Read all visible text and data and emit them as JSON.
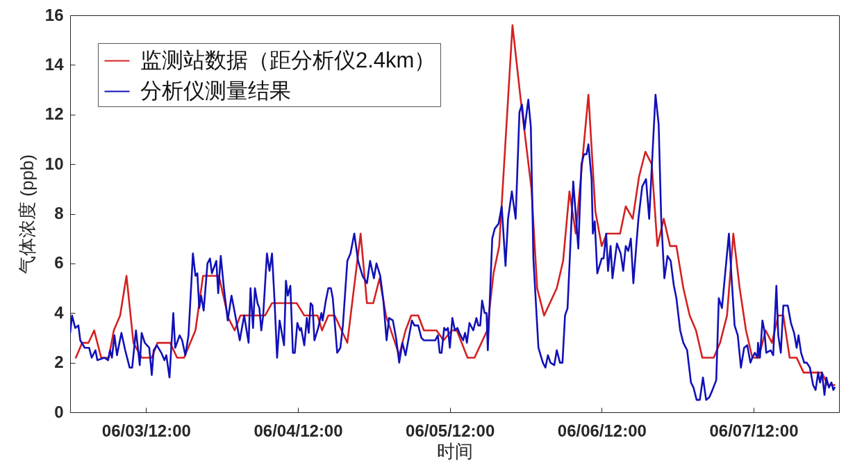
{
  "chart_data": {
    "type": "line",
    "xlabel": "时间",
    "ylabel": "气体浓度 (ppb)",
    "xlim": [
      "--06-03T00:00",
      "--06-08T01:30"
    ],
    "xticks": [
      {
        "value": "--06-03T12:00",
        "label": "06/03/12:00"
      },
      {
        "value": "--06-04T12:00",
        "label": "06/04/12:00"
      },
      {
        "value": "--06-05T12:00",
        "label": "06/05/12:00"
      },
      {
        "value": "--06-06T12:00",
        "label": "06/06/12:00"
      },
      {
        "value": "--06-07T12:00",
        "label": "06/07/12:00"
      }
    ],
    "ylim": [
      0,
      16
    ],
    "yticks": [
      0,
      2,
      4,
      6,
      8,
      10,
      12,
      14,
      16
    ],
    "legend": "top left",
    "series": [
      {
        "name": "监测站数据（距分析仪2.4km）",
        "color": "#d42020",
        "x": [
          "--06-03T00:54",
          "--06-03T01:54",
          "--06-03T02:54",
          "--06-03T03:48",
          "--06-03T04:54",
          "--06-03T06:06",
          "--06-03T06:54",
          "--06-03T07:54",
          "--06-03T08:54",
          "--06-03T10:00",
          "--06-03T11:18",
          "--06-03T12:54",
          "--06-03T13:48",
          "--06-03T15:48",
          "--06-03T16:54",
          "--06-03T18:00",
          "--06-03T19:48",
          "--06-03T21:00",
          "--06-03T23:30",
          "--06-04T01:00",
          "--06-04T02:00",
          "--06-04T02:54",
          "--06-04T06:48",
          "--06-04T07:54",
          "--06-04T11:48",
          "--06-04T13:00",
          "--06-04T15:06",
          "--06-04T15:48",
          "--06-04T16:48",
          "--06-04T17:48",
          "--06-04T19:48",
          "--06-04T21:54",
          "--06-04T22:54",
          "--06-04T23:54",
          "--06-05T00:54",
          "--06-05T01:54",
          "--06-05T04:00",
          "--06-05T05:00",
          "--06-05T05:54",
          "--06-05T07:00",
          "--06-05T07:54",
          "--06-05T09:54",
          "--06-05T11:00",
          "--06-05T12:18",
          "--06-05T13:06",
          "--06-05T14:48",
          "--06-05T15:54",
          "--06-05T17:54",
          "--06-05T18:54",
          "--06-05T19:48",
          "--06-05T21:54",
          "--06-05T23:12",
          "--06-06T00:54",
          "--06-06T01:48",
          "--06-06T02:54",
          "--06-06T04:54",
          "--06-06T05:54",
          "--06-06T06:54",
          "--06-06T07:54",
          "--06-06T09:00",
          "--06-06T09:54",
          "--06-06T11:00",
          "--06-06T12:00",
          "--06-06T12:48",
          "--06-06T14:54",
          "--06-06T15:48",
          "--06-06T16:54",
          "--06-06T17:54",
          "--06-06T18:54",
          "--06-06T19:54",
          "--06-06T20:48",
          "--06-06T21:48",
          "--06-06T22:48",
          "--06-06T23:48",
          "--06-07T00:54",
          "--06-07T01:54",
          "--06-07T02:54",
          "--06-07T03:54",
          "--06-07T05:42",
          "--06-07T06:42",
          "--06-07T07:48",
          "--06-07T08:48",
          "--06-07T09:48",
          "--06-07T10:48",
          "--06-07T11:48",
          "--06-07T12:48",
          "--06-07T13:54",
          "--06-07T14:54",
          "--06-07T15:54",
          "--06-07T16:42",
          "--06-07T17:42",
          "--06-07T18:48",
          "--06-07T19:54",
          "--06-07T22:48",
          "--06-07T23:42",
          "--06-08T00:48"
        ],
        "values": [
          2.2,
          2.8,
          2.8,
          3.3,
          2.2,
          2.2,
          3.3,
          3.9,
          5.5,
          2.8,
          2.2,
          2.2,
          2.8,
          2.8,
          2.2,
          2.2,
          3.3,
          5.5,
          5.5,
          3.8,
          3.3,
          3.9,
          3.9,
          4.4,
          4.4,
          3.9,
          3.9,
          3.3,
          3.9,
          3.9,
          2.8,
          7.2,
          4.4,
          4.4,
          5.4,
          3.9,
          2.3,
          3.3,
          3.9,
          3.9,
          3.3,
          3.3,
          2.9,
          3.3,
          3.3,
          2.2,
          2.2,
          3.3,
          5.6,
          6.7,
          15.6,
          12.6,
          9.0,
          5.0,
          3.9,
          5.0,
          6.1,
          8.9,
          7.2,
          10.3,
          12.8,
          8.1,
          6.7,
          7.2,
          7.2,
          8.3,
          7.8,
          9.5,
          10.5,
          10.0,
          6.7,
          7.8,
          6.7,
          6.7,
          5.0,
          3.9,
          3.3,
          2.2,
          2.2,
          2.8,
          3.9,
          7.2,
          5.0,
          3.3,
          2.2,
          2.2,
          3.3,
          2.8,
          3.9,
          3.9,
          2.2,
          2.2,
          1.6,
          1.6,
          1.1,
          1.1
        ]
      },
      {
        "name": "分析仪测量结果",
        "color": "#1010b8",
        "x": [
          "--06-03T00:00",
          "--06-03T00:18",
          "--06-03T00:48",
          "--06-03T01:18",
          "--06-03T01:36",
          "--06-03T02:18",
          "--06-03T03:00",
          "--06-03T03:24",
          "--06-03T04:00",
          "--06-03T04:18",
          "--06-03T05:24",
          "--06-03T06:00",
          "--06-03T06:18",
          "--06-03T06:36",
          "--06-03T07:00",
          "--06-03T07:24",
          "--06-03T08:06",
          "--06-03T08:42",
          "--06-03T09:24",
          "--06-03T09:48",
          "--06-03T10:24",
          "--06-03T11:00",
          "--06-03T11:18",
          "--06-03T11:48",
          "--06-03T12:30",
          "--06-03T12:54",
          "--06-03T13:12",
          "--06-03T13:42",
          "--06-03T14:24",
          "--06-03T14:54",
          "--06-03T15:12",
          "--06-03T15:42",
          "--06-03T16:18",
          "--06-03T16:36",
          "--06-03T17:18",
          "--06-03T17:42",
          "--06-03T18:12",
          "--06-03T18:42",
          "--06-03T19:24",
          "--06-03T19:48",
          "--06-03T20:06",
          "--06-03T20:24",
          "--06-03T20:42",
          "--06-03T21:06",
          "--06-03T21:42",
          "--06-03T22:06",
          "--06-03T22:24",
          "--06-03T23:06",
          "--06-03T23:24",
          "--06-03T23:48",
          "--06-04T00:18",
          "--06-04T00:54",
          "--06-04T01:30",
          "--06-04T02:06",
          "--06-04T02:48",
          "--06-04T03:30",
          "--06-04T04:12",
          "--06-04T04:30",
          "--06-04T04:54",
          "--06-04T05:12",
          "--06-04T05:36",
          "--06-04T05:54",
          "--06-04T06:12",
          "--06-04T06:30",
          "--06-04T07:06",
          "--06-04T07:30",
          "--06-04T07:54",
          "--06-04T08:18",
          "--06-04T08:42",
          "--06-04T09:06",
          "--06-04T09:48",
          "--06-04T10:06",
          "--06-04T10:24",
          "--06-04T10:48",
          "--06-04T11:12",
          "--06-04T11:30",
          "--06-04T11:54",
          "--06-04T12:18",
          "--06-04T12:30",
          "--06-04T13:00",
          "--06-04T13:24",
          "--06-04T13:42",
          "--06-04T14:00",
          "--06-04T14:18",
          "--06-04T14:36",
          "--06-04T15:12",
          "--06-04T15:42",
          "--06-04T15:54",
          "--06-04T16:24",
          "--06-04T16:48",
          "--06-04T17:12",
          "--06-04T17:30",
          "--06-04T18:12",
          "--06-04T18:42",
          "--06-04T19:06",
          "--06-04T19:48",
          "--06-04T20:18",
          "--06-04T20:54",
          "--06-04T21:30",
          "--06-04T22:12",
          "--06-04T22:54",
          "--06-04T23:24",
          "--06-05T00:00",
          "--06-05T00:24",
          "--06-05T01:00",
          "--06-05T01:30",
          "--06-05T02:00",
          "--06-05T02:24",
          "--06-05T03:00",
          "--06-05T03:30",
          "--06-05T04:00",
          "--06-05T04:30",
          "--06-05T05:00",
          "--06-05T06:00",
          "--06-05T06:24",
          "--06-05T07:00",
          "--06-05T07:30",
          "--06-05T07:54",
          "--06-05T09:42",
          "--06-05T10:06",
          "--06-05T10:24",
          "--06-05T10:42",
          "--06-05T11:06",
          "--06-05T11:24",
          "--06-05T11:42",
          "--06-05T12:00",
          "--06-05T12:24",
          "--06-05T12:48",
          "--06-05T13:12",
          "--06-05T13:30",
          "--06-05T14:06",
          "--06-05T14:24",
          "--06-05T14:42",
          "--06-05T15:06",
          "--06-05T15:42",
          "--06-05T16:12",
          "--06-05T16:30",
          "--06-05T16:48",
          "--06-05T17:06",
          "--06-05T17:30",
          "--06-05T17:48",
          "--06-05T18:00",
          "--06-05T18:42",
          "--06-05T19:06",
          "--06-05T19:42",
          "--06-05T20:12",
          "--06-05T20:48",
          "--06-05T21:12",
          "--06-05T21:48",
          "--06-05T22:24",
          "--06-05T23:00",
          "--06-05T23:24",
          "--06-05T23:48",
          "--06-06T00:24",
          "--06-06T00:48",
          "--06-06T01:12",
          "--06-06T02:00",
          "--06-06T02:42",
          "--06-06T03:06",
          "--06-06T03:30",
          "--06-06T03:54",
          "--06-06T04:30",
          "--06-06T04:54",
          "--06-06T05:24",
          "--06-06T05:48",
          "--06-06T06:12",
          "--06-06T06:36",
          "--06-06T07:30",
          "--06-06T08:18",
          "--06-06T08:48",
          "--06-06T09:12",
          "--06-06T09:36",
          "--06-06T09:54",
          "--06-06T10:24",
          "--06-06T10:36",
          "--06-06T10:54",
          "--06-06T11:18",
          "--06-06T12:00",
          "--06-06T12:18",
          "--06-06T12:42",
          "--06-06T13:00",
          "--06-06T13:24",
          "--06-06T13:42",
          "--06-06T14:24",
          "--06-06T15:00",
          "--06-06T15:24",
          "--06-06T15:48",
          "--06-06T16:12",
          "--06-06T16:36",
          "--06-06T17:00",
          "--06-06T17:48",
          "--06-06T18:24",
          "--06-06T19:00",
          "--06-06T19:30",
          "--06-06T20:30",
          "--06-06T21:00",
          "--06-06T21:24",
          "--06-06T21:54",
          "--06-06T22:24",
          "--06-06T22:54",
          "--06-06T23:24",
          "--06-06T23:48",
          "--06-07T00:24",
          "--06-07T00:54",
          "--06-07T01:30",
          "--06-07T02:06",
          "--06-07T02:30",
          "--06-07T03:00",
          "--06-07T03:30",
          "--06-07T04:00",
          "--06-07T04:30",
          "--06-07T05:00",
          "--06-07T05:30",
          "--06-07T06:06",
          "--06-07T06:30",
          "--06-07T07:00",
          "--06-07T07:24",
          "--06-07T08:06",
          "--06-07T08:30",
          "--06-07T09:00",
          "--06-07T09:30",
          "--06-07T10:00",
          "--06-07T10:30",
          "--06-07T11:00",
          "--06-07T11:30",
          "--06-07T11:48",
          "--06-07T12:12",
          "--06-07T12:36",
          "--06-07T12:42",
          "--06-07T13:00",
          "--06-07T13:24",
          "--06-07T13:42",
          "--06-07T14:00",
          "--06-07T14:42",
          "--06-07T15:06",
          "--06-07T15:36",
          "--06-07T15:54",
          "--06-07T16:18",
          "--06-07T16:42",
          "--06-07T17:24",
          "--06-07T17:54",
          "--06-07T18:24",
          "--06-07T18:48",
          "--06-07T19:06",
          "--06-07T19:30",
          "--06-07T20:00",
          "--06-07T20:24",
          "--06-07T20:54",
          "--06-07T21:24",
          "--06-07T21:48",
          "--06-07T22:12",
          "--06-07T22:30",
          "--06-07T22:48",
          "--06-07T23:12",
          "--06-07T23:30",
          "--06-07T23:54",
          "--06-08T00:18",
          "--06-08T00:36",
          "--06-08T00:48"
        ],
        "values": [
          3.2,
          3.9,
          3.4,
          3.5,
          2.9,
          2.6,
          2.6,
          2.2,
          2.5,
          2.1,
          2.2,
          2.1,
          2.5,
          2.2,
          3.1,
          2.3,
          3.2,
          2.5,
          1.8,
          1.8,
          3.3,
          1.9,
          3.2,
          2.8,
          2.6,
          1.5,
          2.5,
          2.7,
          2.4,
          2.1,
          2.3,
          1.4,
          4.0,
          2.6,
          3.1,
          2.9,
          2.3,
          3.1,
          6.4,
          5.5,
          5.6,
          4.2,
          4.7,
          4.1,
          6.0,
          6.2,
          5.6,
          6.1,
          4.8,
          6.3,
          5.0,
          3.7,
          4.7,
          3.9,
          2.9,
          3.9,
          2.8,
          5.0,
          3.4,
          5.0,
          4.4,
          4.2,
          3.3,
          3.9,
          6.4,
          5.7,
          6.4,
          4.5,
          2.2,
          3.7,
          2.7,
          5.3,
          4.7,
          5.1,
          2.4,
          2.4,
          3.6,
          3.3,
          3.4,
          2.7,
          3.8,
          3.2,
          4.4,
          4.3,
          2.9,
          3.4,
          4.0,
          3.7,
          4.5,
          5.0,
          5.0,
          4.6,
          2.4,
          2.6,
          3.5,
          6.1,
          6.4,
          7.2,
          6.1,
          5.5,
          5.2,
          6.1,
          5.4,
          6.0,
          5.5,
          4.5,
          2.9,
          3.8,
          3.7,
          3.0,
          2.0,
          2.8,
          2.3,
          3.7,
          3.5,
          3.5,
          3.0,
          2.9,
          2.9,
          3.1,
          2.4,
          2.4,
          3.4,
          3.3,
          3.4,
          2.6,
          3.8,
          3.3,
          3.4,
          3.2,
          2.9,
          3.2,
          2.8,
          3.6,
          3.3,
          3.8,
          3.5,
          3.5,
          4.5,
          4.0,
          4.0,
          2.5,
          7.0,
          7.4,
          7.6,
          8.3,
          5.9,
          7.8,
          8.9,
          7.8,
          12.1,
          12.4,
          11.4,
          12.6,
          11.5,
          6.2,
          2.6,
          2.0,
          1.8,
          2.3,
          2.0,
          1.9,
          2.5,
          2.0,
          2.0,
          3.9,
          4.2,
          9.3,
          6.6,
          10.0,
          10.4,
          10.4,
          10.8,
          9.4,
          7.2,
          7.7,
          5.6,
          6.2,
          6.2,
          7.2,
          5.7,
          6.7,
          5.4,
          6.8,
          6.4,
          5.7,
          6.7,
          6.5,
          7.0,
          5.2,
          7.8,
          9.1,
          9.4,
          7.8,
          12.8,
          11.6,
          7.8,
          5.4,
          6.3,
          6.1,
          5.1,
          4.6,
          3.3,
          2.8,
          2.5,
          1.2,
          1.0,
          0.5,
          0.5,
          1.4,
          0.5,
          0.6,
          0.9,
          1.3,
          4.6,
          4.2,
          5.3,
          7.2,
          5.5,
          3.5,
          3.1,
          1.8,
          2.6,
          2.7,
          2.0,
          2.2,
          2.4,
          2.2,
          2.8,
          2.2,
          3.7,
          3.3,
          2.4,
          2.5,
          2.3,
          5.1,
          3.1,
          2.4,
          4.3,
          4.3,
          3.6,
          3.2,
          2.6,
          3.1,
          2.4,
          2.0,
          2.0,
          1.8,
          1.1,
          0.9,
          1.6,
          1.2,
          1.6,
          0.7,
          1.4,
          1.0,
          1.2,
          0.9,
          1.0
        ]
      }
    ]
  }
}
